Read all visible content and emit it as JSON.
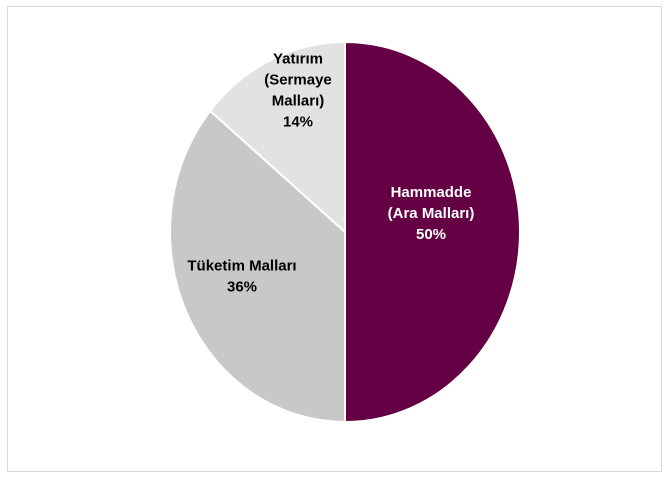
{
  "chart_data": {
    "type": "pie",
    "title": "",
    "slices": [
      {
        "name": "Hammadde (Ara Malları)",
        "lines": [
          "Hammadde",
          "(Ara Malları)"
        ],
        "value": 50,
        "value_label": "50%",
        "color": "#660044",
        "label_color": "#ffffff"
      },
      {
        "name": "Tüketim Malları",
        "lines": [
          "Tüketim Malları"
        ],
        "value": 36,
        "value_label": "36%",
        "color": "#c8c8c8",
        "label_color": "#000000"
      },
      {
        "name": "Yatırım (Sermaye Malları)",
        "lines": [
          "Yatırım",
          "(Sermaye",
          "Malları)"
        ],
        "value": 14,
        "value_label": "14%",
        "color": "#e2e2e2",
        "label_color": "#000000"
      }
    ],
    "start_angle_deg": 0,
    "direction": "clockwise",
    "legend": "none",
    "data_labels": "inside"
  }
}
